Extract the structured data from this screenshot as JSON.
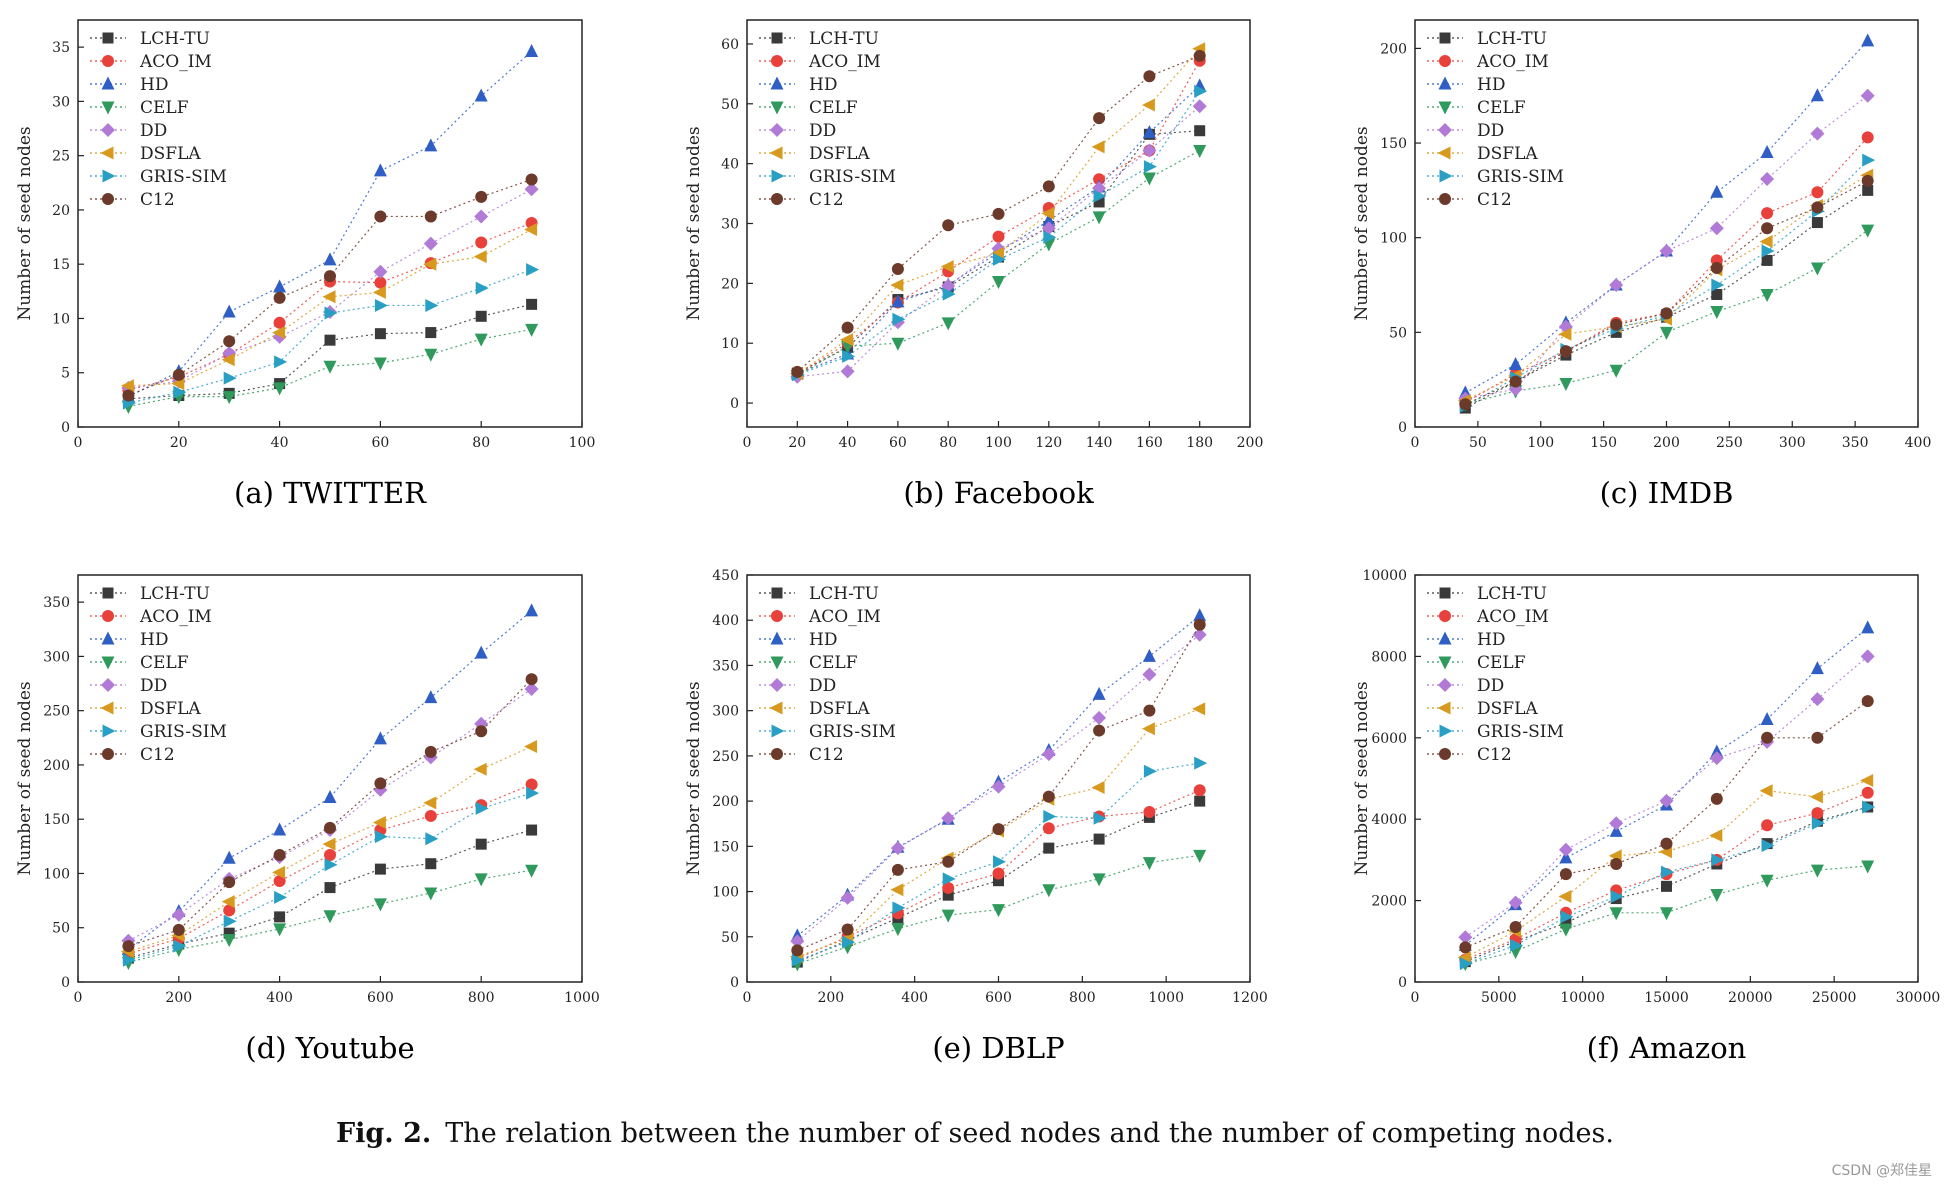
{
  "figure": {
    "caption_label": "Fig. 2.",
    "caption_text": "The relation between the number of seed nodes and the number of competing nodes.",
    "watermark": "CSDN @郑佳星"
  },
  "series_styles": [
    {
      "name": "LCH-TU",
      "color": "#3a3a3a",
      "marker": "square"
    },
    {
      "name": "ACO_IM",
      "color": "#e8413c",
      "marker": "circle"
    },
    {
      "name": "HD",
      "color": "#2f5fc4",
      "marker": "triangle-up"
    },
    {
      "name": "CELF",
      "color": "#2f9a5c",
      "marker": "triangle-down"
    },
    {
      "name": "DD",
      "color": "#b07ad6",
      "marker": "diamond"
    },
    {
      "name": "DSFLA",
      "color": "#d79a1e",
      "marker": "triangle-left"
    },
    {
      "name": "GRIS-SIM",
      "color": "#2a9fc4",
      "marker": "triangle-right"
    },
    {
      "name": "C12",
      "color": "#6b3a2a",
      "marker": "circle"
    }
  ],
  "chart_data": [
    {
      "type": "line",
      "title": "(a) TWITTER",
      "xlabel": "",
      "ylabel": "Number of seed nodes",
      "xlim": [
        0,
        100
      ],
      "ylim": [
        0,
        37.5
      ],
      "xticks": [
        0,
        20,
        40,
        60,
        80,
        100
      ],
      "yticks": [
        0,
        5,
        10,
        15,
        20,
        25,
        30,
        35
      ],
      "xticklabels": [
        "0",
        "20",
        "40",
        "60",
        "80",
        "100"
      ],
      "yticklabels": [
        "0",
        "5",
        "10",
        "15",
        "20",
        "25",
        "30",
        "35"
      ],
      "x": [
        10,
        20,
        30,
        40,
        50,
        60,
        70,
        80,
        90
      ],
      "series": [
        {
          "name": "LCH-TU",
          "values": [
            2.6,
            2.9,
            3.1,
            4.0,
            8.0,
            8.6,
            8.7,
            10.2,
            11.3
          ]
        },
        {
          "name": "ACO_IM",
          "values": [
            3.4,
            4.6,
            6.7,
            9.6,
            13.4,
            13.3,
            15.1,
            17.0,
            18.8
          ]
        },
        {
          "name": "HD",
          "values": [
            2.8,
            5.1,
            10.6,
            12.9,
            15.4,
            23.6,
            25.9,
            30.5,
            34.6
          ]
        },
        {
          "name": "CELF",
          "values": [
            1.9,
            2.8,
            2.8,
            3.6,
            5.6,
            5.9,
            6.7,
            8.1,
            9.0
          ]
        },
        {
          "name": "DD",
          "values": [
            3.6,
            4.2,
            6.8,
            8.3,
            10.6,
            14.3,
            16.9,
            19.4,
            21.9
          ]
        },
        {
          "name": "DSFLA",
          "values": [
            3.8,
            4.0,
            6.2,
            8.7,
            12.0,
            12.4,
            15.0,
            15.7,
            18.2
          ]
        },
        {
          "name": "GRIS-SIM",
          "values": [
            2.2,
            3.2,
            4.5,
            6.0,
            10.5,
            11.2,
            11.2,
            12.8,
            14.5
          ]
        },
        {
          "name": "C12",
          "values": [
            2.9,
            4.8,
            7.9,
            11.9,
            13.9,
            19.4,
            19.4,
            21.2,
            22.8
          ]
        }
      ]
    },
    {
      "type": "line",
      "title": "(b) Facebook",
      "xlabel": "",
      "ylabel": "Number of seed nodes",
      "xlim": [
        0,
        200
      ],
      "ylim": [
        -4,
        64
      ],
      "xticks": [
        0,
        20,
        40,
        60,
        80,
        100,
        120,
        140,
        160,
        180,
        200
      ],
      "yticks": [
        0,
        10,
        20,
        30,
        40,
        50,
        60
      ],
      "xticklabels": [
        "0",
        "20",
        "40",
        "60",
        "80",
        "100",
        "120",
        "140",
        "160",
        "180",
        "200"
      ],
      "yticklabels": [
        "0",
        "10",
        "20",
        "30",
        "40",
        "50",
        "60"
      ],
      "x": [
        20,
        40,
        60,
        80,
        100,
        120,
        140,
        160,
        180
      ],
      "series": [
        {
          "name": "LCH-TU",
          "values": [
            5.0,
            9.3,
            17.3,
            19.4,
            24.4,
            29.5,
            33.6,
            44.9,
            45.5
          ]
        },
        {
          "name": "ACO_IM",
          "values": [
            4.8,
            10.0,
            16.8,
            22.0,
            27.8,
            32.6,
            37.4,
            42.2,
            57.2
          ]
        },
        {
          "name": "HD",
          "values": [
            4.9,
            8.2,
            16.9,
            19.7,
            25.2,
            30.5,
            36.1,
            45.2,
            53.0
          ]
        },
        {
          "name": "CELF",
          "values": [
            4.6,
            9.5,
            10.0,
            13.4,
            20.3,
            26.6,
            31.1,
            37.6,
            42.2
          ]
        },
        {
          "name": "DD",
          "values": [
            4.4,
            5.3,
            13.5,
            19.6,
            25.8,
            29.2,
            35.9,
            42.2,
            49.6
          ]
        },
        {
          "name": "DSFLA",
          "values": [
            4.9,
            10.6,
            19.7,
            22.8,
            25.0,
            31.7,
            42.8,
            49.8,
            59.2
          ]
        },
        {
          "name": "GRIS-SIM",
          "values": [
            4.7,
            7.8,
            14.0,
            18.2,
            24.0,
            27.7,
            34.6,
            39.5,
            52.1
          ]
        },
        {
          "name": "C12",
          "values": [
            5.2,
            12.6,
            22.4,
            29.7,
            31.6,
            36.2,
            47.6,
            54.6,
            58.0
          ]
        }
      ]
    },
    {
      "type": "line",
      "title": "(c) IMDB",
      "xlabel": "",
      "ylabel": "Number of seed nodes",
      "xlim": [
        0,
        400
      ],
      "ylim": [
        0,
        215
      ],
      "xticks": [
        0,
        50,
        100,
        150,
        200,
        250,
        300,
        350,
        400
      ],
      "yticks": [
        0,
        50,
        100,
        150,
        200
      ],
      "xticklabels": [
        "0",
        "50",
        "100",
        "150",
        "200",
        "250",
        "300",
        "350",
        "400"
      ],
      "yticklabels": [
        "0",
        "50",
        "100",
        "150",
        "200"
      ],
      "x": [
        40,
        80,
        120,
        160,
        200,
        240,
        280,
        320,
        360
      ],
      "series": [
        {
          "name": "LCH-TU",
          "values": [
            10,
            24,
            38,
            50,
            58,
            70,
            88,
            108,
            125
          ]
        },
        {
          "name": "ACO_IM",
          "values": [
            13,
            28,
            40,
            55,
            60,
            88,
            113,
            124,
            153
          ]
        },
        {
          "name": "HD",
          "values": [
            18,
            33,
            55,
            75,
            93,
            124,
            145,
            175,
            204
          ]
        },
        {
          "name": "CELF",
          "values": [
            12,
            19,
            23,
            30,
            50,
            61,
            70,
            84,
            104
          ]
        },
        {
          "name": "DD",
          "values": [
            15,
            20,
            53,
            75,
            93,
            105,
            131,
            155,
            175
          ]
        },
        {
          "name": "DSFLA",
          "values": [
            14,
            27,
            49,
            53,
            57,
            83,
            98,
            117,
            133
          ]
        },
        {
          "name": "GRIS-SIM",
          "values": [
            11,
            26,
            41,
            52,
            59,
            75,
            93,
            114,
            141
          ]
        },
        {
          "name": "C12",
          "values": [
            12,
            24,
            40,
            54,
            60,
            84,
            105,
            116,
            130
          ]
        }
      ]
    },
    {
      "type": "line",
      "title": "(d) Youtube",
      "xlabel": "",
      "ylabel": "Number of seed nodes",
      "xlim": [
        0,
        1000
      ],
      "ylim": [
        0,
        375
      ],
      "xticks": [
        0,
        200,
        400,
        600,
        800,
        1000
      ],
      "yticks": [
        0,
        50,
        100,
        150,
        200,
        250,
        300,
        350
      ],
      "xticklabels": [
        "0",
        "200",
        "400",
        "600",
        "800",
        "1000"
      ],
      "yticklabels": [
        "0",
        "50",
        "100",
        "150",
        "200",
        "250",
        "300",
        "350"
      ],
      "x": [
        100,
        200,
        300,
        400,
        500,
        600,
        700,
        800,
        900
      ],
      "series": [
        {
          "name": "LCH-TU",
          "values": [
            22,
            35,
            45,
            60,
            87,
            104,
            109,
            127,
            140
          ]
        },
        {
          "name": "ACO_IM",
          "values": [
            26,
            40,
            66,
            93,
            117,
            140,
            153,
            163,
            182
          ]
        },
        {
          "name": "HD",
          "values": [
            30,
            65,
            114,
            140,
            170,
            224,
            262,
            303,
            342
          ]
        },
        {
          "name": "CELF",
          "values": [
            18,
            30,
            39,
            49,
            61,
            72,
            82,
            95,
            103
          ]
        },
        {
          "name": "DD",
          "values": [
            38,
            62,
            95,
            115,
            140,
            177,
            207,
            238,
            270
          ]
        },
        {
          "name": "DSFLA",
          "values": [
            28,
            43,
            74,
            101,
            127,
            147,
            165,
            196,
            217
          ]
        },
        {
          "name": "GRIS-SIM",
          "values": [
            20,
            33,
            56,
            78,
            108,
            134,
            132,
            160,
            174
          ]
        },
        {
          "name": "C12",
          "values": [
            33,
            48,
            92,
            117,
            142,
            183,
            212,
            231,
            279
          ]
        }
      ]
    },
    {
      "type": "line",
      "title": "(e) DBLP",
      "xlabel": "",
      "ylabel": "Number of seed nodes",
      "xlim": [
        0,
        1200
      ],
      "ylim": [
        0,
        450
      ],
      "xticks": [
        0,
        200,
        400,
        600,
        800,
        1000,
        1200
      ],
      "yticks": [
        0,
        50,
        100,
        150,
        200,
        250,
        300,
        350,
        400,
        450
      ],
      "xticklabels": [
        "0",
        "200",
        "400",
        "600",
        "800",
        "1000",
        "1200"
      ],
      "yticklabels": [
        "0",
        "50",
        "100",
        "150",
        "200",
        "250",
        "300",
        "350",
        "400",
        "450"
      ],
      "x": [
        120,
        240,
        360,
        480,
        600,
        720,
        840,
        960,
        1080
      ],
      "series": [
        {
          "name": "LCH-TU",
          "values": [
            22,
            46,
            71,
            96,
            112,
            148,
            158,
            182,
            200
          ]
        },
        {
          "name": "ACO_IM",
          "values": [
            26,
            50,
            76,
            104,
            120,
            170,
            183,
            188,
            212
          ]
        },
        {
          "name": "HD",
          "values": [
            51,
            96,
            149,
            180,
            221,
            256,
            318,
            360,
            405
          ]
        },
        {
          "name": "CELF",
          "values": [
            20,
            39,
            59,
            74,
            80,
            102,
            114,
            132,
            140
          ]
        },
        {
          "name": "DD",
          "values": [
            45,
            93,
            148,
            181,
            216,
            252,
            292,
            340,
            384
          ]
        },
        {
          "name": "DSFLA",
          "values": [
            28,
            48,
            102,
            137,
            167,
            202,
            215,
            280,
            302
          ]
        },
        {
          "name": "GRIS-SIM",
          "values": [
            24,
            44,
            82,
            114,
            133,
            183,
            181,
            233,
            242
          ]
        },
        {
          "name": "C12",
          "values": [
            35,
            58,
            124,
            133,
            169,
            205,
            278,
            300,
            395
          ]
        }
      ]
    },
    {
      "type": "line",
      "title": "(f) Amazon",
      "xlabel": "",
      "ylabel": "Number of seed nodes",
      "xlim": [
        0,
        30000
      ],
      "ylim": [
        0,
        10000
      ],
      "xticks": [
        0,
        5000,
        10000,
        15000,
        20000,
        25000,
        30000
      ],
      "yticks": [
        0,
        2000,
        4000,
        6000,
        8000,
        10000
      ],
      "xticklabels": [
        "0",
        "5000",
        "10000",
        "15000",
        "20000",
        "25000",
        "30000"
      ],
      "yticklabels": [
        "0",
        "2000",
        "4000",
        "6000",
        "8000",
        "10000"
      ],
      "x": [
        3000,
        6000,
        9000,
        12000,
        15000,
        18000,
        21000,
        24000,
        27000
      ],
      "series": [
        {
          "name": "LCH-TU",
          "values": [
            500,
            1000,
            1450,
            2050,
            2350,
            2900,
            3400,
            3950,
            4300
          ]
        },
        {
          "name": "ACO_IM",
          "values": [
            550,
            1050,
            1700,
            2250,
            2650,
            3000,
            3850,
            4150,
            4650
          ]
        },
        {
          "name": "HD",
          "values": [
            900,
            1900,
            3050,
            3700,
            4350,
            5650,
            6450,
            7700,
            8700
          ]
        },
        {
          "name": "CELF",
          "values": [
            450,
            750,
            1300,
            1700,
            1700,
            2150,
            2500,
            2750,
            2850
          ]
        },
        {
          "name": "DD",
          "values": [
            1100,
            1950,
            3250,
            3900,
            4450,
            5500,
            5900,
            6950,
            8000
          ]
        },
        {
          "name": "DSFLA",
          "values": [
            600,
            1250,
            2100,
            3100,
            3200,
            3600,
            4700,
            4550,
            4950
          ]
        },
        {
          "name": "GRIS-SIM",
          "values": [
            450,
            900,
            1600,
            2100,
            2700,
            3000,
            3350,
            3900,
            4300
          ]
        },
        {
          "name": "C12",
          "values": [
            850,
            1350,
            2650,
            2900,
            3400,
            4500,
            6000,
            6000,
            6900
          ]
        }
      ]
    }
  ]
}
